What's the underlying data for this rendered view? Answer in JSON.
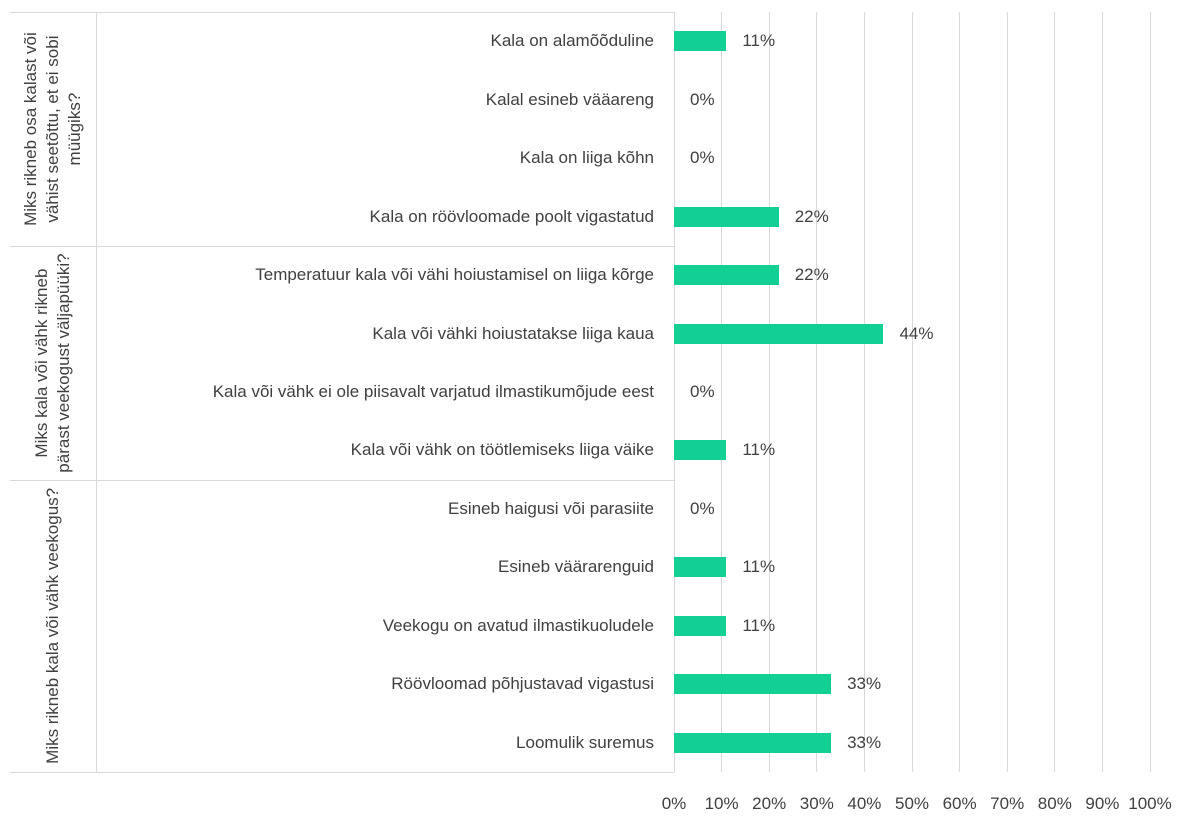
{
  "chart_data": {
    "type": "bar",
    "orientation": "horizontal",
    "color": "#12cf94",
    "grid": true,
    "xlim": [
      0,
      100
    ],
    "xticks": [
      {
        "value": 0,
        "label": "0%"
      },
      {
        "value": 10,
        "label": "10%"
      },
      {
        "value": 20,
        "label": "20%"
      },
      {
        "value": 30,
        "label": "30%"
      },
      {
        "value": 40,
        "label": "40%"
      },
      {
        "value": 50,
        "label": "50%"
      },
      {
        "value": 60,
        "label": "60%"
      },
      {
        "value": 70,
        "label": "70%"
      },
      {
        "value": 80,
        "label": "80%"
      },
      {
        "value": 90,
        "label": "90%"
      },
      {
        "value": 100,
        "label": "100%"
      }
    ],
    "groups": [
      {
        "name": "Miks rikneb osa kalast või vähist seetõttu, et ei sobi müügiks?",
        "categories": [
          "Kala on alamõõduline",
          "Kalal esineb vääareng",
          "Kala on liiga kõhn",
          "Kala on röövloomade poolt vigastatud"
        ],
        "values": [
          11,
          0,
          0,
          22
        ],
        "value_labels": [
          "11%",
          "0%",
          "0%",
          "22%"
        ]
      },
      {
        "name": "Miks kala või vähk rikneb pärast veekogust väljapüüki?",
        "categories": [
          "Temperatuur kala või vähi hoiustamisel on liiga kõrge",
          "Kala või vähki hoiustatakse liiga kaua",
          "Kala või vähk ei ole piisavalt varjatud ilmastikumõjude eest",
          "Kala või vähk on töötlemiseks liiga väike"
        ],
        "values": [
          22,
          44,
          0,
          11
        ],
        "value_labels": [
          "22%",
          "44%",
          "0%",
          "11%"
        ]
      },
      {
        "name": "Miks rikneb kala või vähk veekogus?",
        "categories": [
          "Esineb haigusi või parasiite",
          "Esineb väärarenguid",
          "Veekogu on avatud ilmastikuoludele",
          "Röövloomad põhjustavad vigastusi",
          "Loomulik suremus"
        ],
        "values": [
          0,
          11,
          11,
          33,
          33
        ],
        "value_labels": [
          "0%",
          "11%",
          "11%",
          "33%",
          "33%"
        ]
      }
    ]
  }
}
